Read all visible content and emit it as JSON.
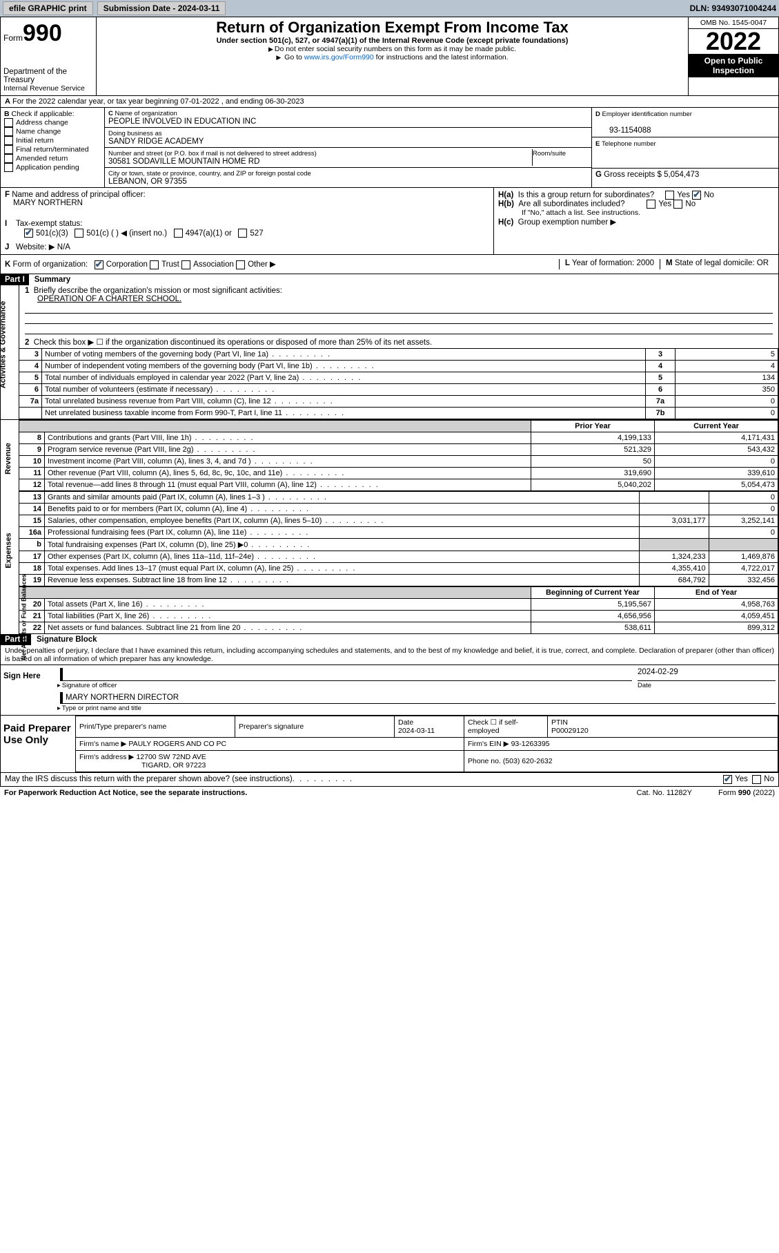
{
  "topbar": {
    "efile": "efile GRAPHIC print",
    "subdate_lbl": "Submission Date - 2024-03-11",
    "dln": "DLN: 93493071004244"
  },
  "hdr": {
    "form": "Form",
    "num": "990",
    "title": "Return of Organization Exempt From Income Tax",
    "sub": "Under section 501(c), 527, or 4947(a)(1) of the Internal Revenue Code (except private foundations)",
    "note1": "Do not enter social security numbers on this form as it may be made public.",
    "note2_pre": "Go to ",
    "note2_link": "www.irs.gov/Form990",
    "note2_post": " for instructions and the latest information.",
    "dept": "Department of the Treasury",
    "irs": "Internal Revenue Service",
    "omb": "OMB No. 1545-0047",
    "year": "2022",
    "openpub": "Open to Public Inspection"
  },
  "A": {
    "text": "For the 2022 calendar year, or tax year beginning 07-01-2022   , and ending 06-30-2023"
  },
  "B": {
    "hdr": "Check if applicable:",
    "items": [
      "Address change",
      "Name change",
      "Initial return",
      "Final return/terminated",
      "Amended return",
      "Application pending"
    ]
  },
  "C": {
    "lbl": "Name of organization",
    "name": "PEOPLE INVOLVED IN EDUCATION INC",
    "dba_lbl": "Doing business as",
    "dba": "SANDY RIDGE ACADEMY",
    "addr_lbl": "Number and street (or P.O. box if mail is not delivered to street address)",
    "room_lbl": "Room/suite",
    "addr": "30581 SODAVILLE MOUNTAIN HOME RD",
    "city_lbl": "City or town, state or province, country, and ZIP or foreign postal code",
    "city": "LEBANON, OR  97355"
  },
  "D": {
    "lbl": "Employer identification number",
    "val": "93-1154088"
  },
  "E": {
    "lbl": "Telephone number",
    "val": ""
  },
  "G": {
    "lbl": "Gross receipts $",
    "val": "5,054,473"
  },
  "F": {
    "lbl": "Name and address of principal officer:",
    "name": "MARY NORTHERN"
  },
  "H": {
    "a": "Is this a group return for subordinates?",
    "b": "Are all subordinates included?",
    "bnote": "If \"No,\" attach a list. See instructions.",
    "c": "Group exemption number ▶"
  },
  "I": {
    "lbl": "Tax-exempt status:",
    "opts": [
      "501(c)(3)",
      "501(c) (   ) ◀ (insert no.)",
      "4947(a)(1) or",
      "527"
    ]
  },
  "J": {
    "lbl": "Website: ▶",
    "val": "N/A"
  },
  "K": {
    "lbl": "Form of organization:",
    "opts": [
      "Corporation",
      "Trust",
      "Association",
      "Other ▶"
    ]
  },
  "L": {
    "lbl": "Year of formation:",
    "val": "2000"
  },
  "M": {
    "lbl": "State of legal domicile:",
    "val": "OR"
  },
  "part1": {
    "hdr": "Part I",
    "title": "Summary",
    "l1": "Briefly describe the organization's mission or most significant activities:",
    "l1v": "OPERATION OF A CHARTER SCHOOL.",
    "l2": "Check this box ▶ ☐  if the organization discontinued its operations or disposed of more than 25% of its net assets.",
    "rows_ag": [
      {
        "n": "3",
        "t": "Number of voting members of the governing body (Part VI, line 1a)",
        "rn": "3",
        "v": "5"
      },
      {
        "n": "4",
        "t": "Number of independent voting members of the governing body (Part VI, line 1b)",
        "rn": "4",
        "v": "4"
      },
      {
        "n": "5",
        "t": "Total number of individuals employed in calendar year 2022 (Part V, line 2a)",
        "rn": "5",
        "v": "134"
      },
      {
        "n": "6",
        "t": "Total number of volunteers (estimate if necessary)",
        "rn": "6",
        "v": "350"
      },
      {
        "n": "7a",
        "t": "Total unrelated business revenue from Part VIII, column (C), line 12",
        "rn": "7a",
        "v": "0"
      },
      {
        "n": "",
        "t": "Net unrelated business taxable income from Form 990-T, Part I, line 11",
        "rn": "7b",
        "v": "0"
      }
    ],
    "col_py": "Prior Year",
    "col_cy": "Current Year",
    "rows_rev": [
      {
        "n": "8",
        "t": "Contributions and grants (Part VIII, line 1h)",
        "py": "4,199,133",
        "cy": "4,171,431"
      },
      {
        "n": "9",
        "t": "Program service revenue (Part VIII, line 2g)",
        "py": "521,329",
        "cy": "543,432"
      },
      {
        "n": "10",
        "t": "Investment income (Part VIII, column (A), lines 3, 4, and 7d )",
        "py": "50",
        "cy": "0"
      },
      {
        "n": "11",
        "t": "Other revenue (Part VIII, column (A), lines 5, 6d, 8c, 9c, 10c, and 11e)",
        "py": "319,690",
        "cy": "339,610"
      },
      {
        "n": "12",
        "t": "Total revenue—add lines 8 through 11 (must equal Part VIII, column (A), line 12)",
        "py": "5,040,202",
        "cy": "5,054,473"
      }
    ],
    "rows_exp": [
      {
        "n": "13",
        "t": "Grants and similar amounts paid (Part IX, column (A), lines 1–3 )",
        "py": "",
        "cy": "0"
      },
      {
        "n": "14",
        "t": "Benefits paid to or for members (Part IX, column (A), line 4)",
        "py": "",
        "cy": "0"
      },
      {
        "n": "15",
        "t": "Salaries, other compensation, employee benefits (Part IX, column (A), lines 5–10)",
        "py": "3,031,177",
        "cy": "3,252,141"
      },
      {
        "n": "16a",
        "t": "Professional fundraising fees (Part IX, column (A), line 11e)",
        "py": "",
        "cy": "0"
      },
      {
        "n": "b",
        "t": "Total fundraising expenses (Part IX, column (D), line 25) ▶0",
        "py": "GRAY",
        "cy": "GRAY"
      },
      {
        "n": "17",
        "t": "Other expenses (Part IX, column (A), lines 11a–11d, 11f–24e)",
        "py": "1,324,233",
        "cy": "1,469,876"
      },
      {
        "n": "18",
        "t": "Total expenses. Add lines 13–17 (must equal Part IX, column (A), line 25)",
        "py": "4,355,410",
        "cy": "4,722,017"
      },
      {
        "n": "19",
        "t": "Revenue less expenses. Subtract line 18 from line 12",
        "py": "684,792",
        "cy": "332,456"
      }
    ],
    "col_beg": "Beginning of Current Year",
    "col_end": "End of Year",
    "rows_na": [
      {
        "n": "20",
        "t": "Total assets (Part X, line 16)",
        "py": "5,195,567",
        "cy": "4,958,763"
      },
      {
        "n": "21",
        "t": "Total liabilities (Part X, line 26)",
        "py": "4,656,956",
        "cy": "4,059,451"
      },
      {
        "n": "22",
        "t": "Net assets or fund balances. Subtract line 21 from line 20",
        "py": "538,611",
        "cy": "899,312"
      }
    ],
    "side": {
      "ag": "Activities & Governance",
      "rev": "Revenue",
      "exp": "Expenses",
      "na": "Net Assets or\nFund Balances"
    }
  },
  "part2": {
    "hdr": "Part II",
    "title": "Signature Block",
    "decl": "Under penalties of perjury, I declare that I have examined this return, including accompanying schedules and statements, and to the best of my knowledge and belief, it is true, correct, and complete. Declaration of preparer (other than officer) is based on all information of which preparer has any knowledge.",
    "sign_here": "Sign Here",
    "sig_off": "Signature of officer",
    "date": "Date",
    "date_v": "2024-02-29",
    "name_title": "MARY NORTHERN  DIRECTOR",
    "name_title_lbl": "Type or print name and title",
    "paid": "Paid Preparer Use Only",
    "p_name_lbl": "Print/Type preparer's name",
    "p_sig_lbl": "Preparer's signature",
    "p_date_lbl": "Date",
    "p_date": "2024-03-11",
    "p_check": "Check ☐ if self-employed",
    "ptin_lbl": "PTIN",
    "ptin": "P00029120",
    "firm_name_lbl": "Firm's name   ▶",
    "firm_name": "PAULY ROGERS AND CO PC",
    "firm_ein_lbl": "Firm's EIN ▶",
    "firm_ein": "93-1263395",
    "firm_addr_lbl": "Firm's address ▶",
    "firm_addr1": "12700 SW 72ND AVE",
    "firm_addr2": "TIGARD, OR  97223",
    "phone_lbl": "Phone no.",
    "phone": "(503) 620-2632",
    "discuss": "May the IRS discuss this return with the preparer shown above? (see instructions)"
  },
  "foot": {
    "pra": "For Paperwork Reduction Act Notice, see the separate instructions.",
    "cat": "Cat. No. 11282Y",
    "form": "Form 990 (2022)"
  }
}
